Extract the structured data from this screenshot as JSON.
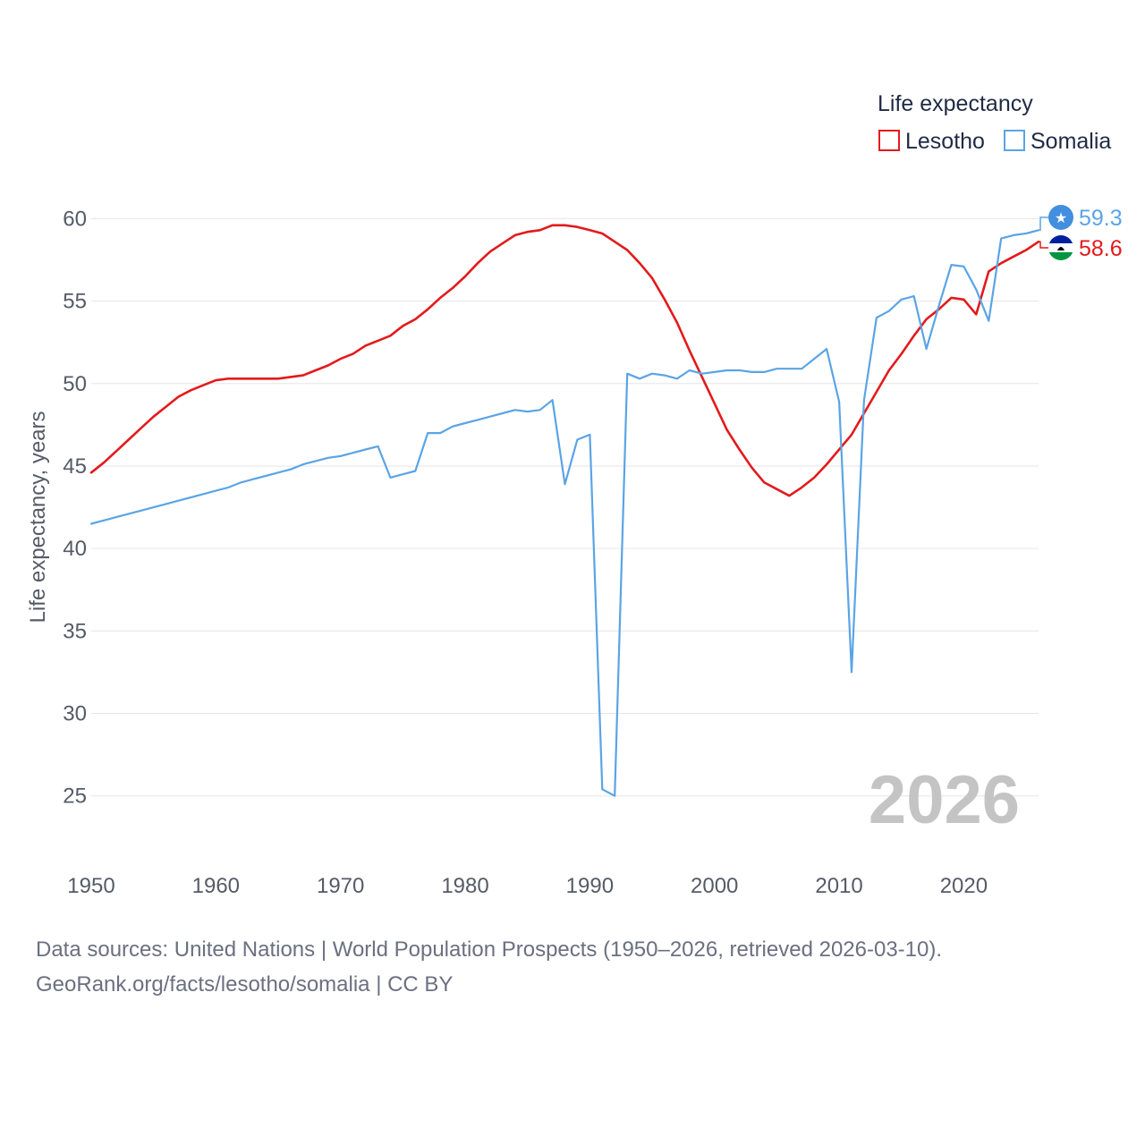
{
  "chart_data": {
    "type": "line",
    "title": "",
    "xlabel": "",
    "ylabel": "Life expectancy, years",
    "xlim": [
      1950,
      2026
    ],
    "ylim": [
      22,
      61
    ],
    "x_ticks": [
      1950,
      1960,
      1970,
      1980,
      1990,
      2000,
      2010,
      2020
    ],
    "y_ticks": [
      25,
      30,
      35,
      40,
      45,
      50,
      55,
      60
    ],
    "grid": true,
    "legend": {
      "title": "Life expectancy",
      "placement": "top-right"
    },
    "year_label": "2026",
    "x": [
      1950,
      1951,
      1952,
      1953,
      1954,
      1955,
      1956,
      1957,
      1958,
      1959,
      1960,
      1961,
      1962,
      1963,
      1964,
      1965,
      1966,
      1967,
      1968,
      1969,
      1970,
      1971,
      1972,
      1973,
      1974,
      1975,
      1976,
      1977,
      1978,
      1979,
      1980,
      1981,
      1982,
      1983,
      1984,
      1985,
      1986,
      1987,
      1988,
      1989,
      1990,
      1991,
      1992,
      1993,
      1994,
      1995,
      1996,
      1997,
      1998,
      1999,
      2000,
      2001,
      2002,
      2003,
      2004,
      2005,
      2006,
      2007,
      2008,
      2009,
      2010,
      2011,
      2012,
      2013,
      2014,
      2015,
      2016,
      2017,
      2018,
      2019,
      2020,
      2021,
      2022,
      2023,
      2024,
      2025,
      2026
    ],
    "series": [
      {
        "name": "Lesotho",
        "color": "#e31a1c",
        "end_label": "58.6",
        "values": [
          44.6,
          45.2,
          45.9,
          46.6,
          47.3,
          48.0,
          48.6,
          49.2,
          49.6,
          49.9,
          50.2,
          50.3,
          50.3,
          50.3,
          50.3,
          50.3,
          50.4,
          50.5,
          50.8,
          51.1,
          51.5,
          51.8,
          52.3,
          52.6,
          52.9,
          53.5,
          53.9,
          54.5,
          55.2,
          55.8,
          56.5,
          57.3,
          58.0,
          58.5,
          59.0,
          59.2,
          59.3,
          59.6,
          59.6,
          59.5,
          59.3,
          59.1,
          58.6,
          58.1,
          57.3,
          56.4,
          55.1,
          53.7,
          52.0,
          50.4,
          48.8,
          47.2,
          46.0,
          44.9,
          44.0,
          43.6,
          43.2,
          43.7,
          44.3,
          45.1,
          46.0,
          46.9,
          48.2,
          49.5,
          50.8,
          51.8,
          52.9,
          53.9,
          54.5,
          55.2,
          55.1,
          54.2,
          56.8,
          57.3,
          57.7,
          58.1,
          58.6
        ]
      },
      {
        "name": "Somalia",
        "color": "#5ba4e5",
        "end_label": "59.3",
        "values": [
          41.5,
          41.7,
          41.9,
          42.1,
          42.3,
          42.5,
          42.7,
          42.9,
          43.1,
          43.3,
          43.5,
          43.7,
          44.0,
          44.2,
          44.4,
          44.6,
          44.8,
          45.1,
          45.3,
          45.5,
          45.6,
          45.8,
          46.0,
          46.2,
          44.3,
          44.5,
          44.7,
          47.0,
          47.0,
          47.4,
          47.6,
          47.8,
          48.0,
          48.2,
          48.4,
          48.3,
          48.4,
          49.0,
          43.9,
          46.6,
          46.9,
          25.4,
          25.0,
          50.6,
          50.3,
          50.6,
          50.5,
          50.3,
          50.8,
          50.6,
          50.7,
          50.8,
          50.8,
          50.7,
          50.7,
          50.9,
          50.9,
          50.9,
          51.5,
          52.1,
          48.9,
          32.5,
          49.0,
          54.0,
          54.4,
          55.1,
          55.3,
          52.1,
          54.7,
          57.2,
          57.1,
          55.7,
          53.8,
          58.8,
          59.0,
          59.1,
          59.3
        ]
      }
    ]
  },
  "source": {
    "line1": "Data sources: United Nations | World Population Prospects (1950–2026, retrieved 2026-03-10).",
    "line2": "GeoRank.org/facts/lesotho/somalia | CC BY"
  }
}
